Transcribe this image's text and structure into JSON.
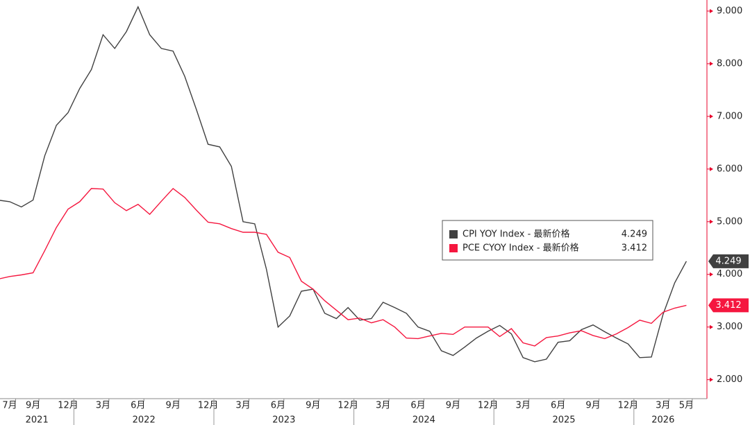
{
  "chart_data": {
    "type": "line",
    "x": [
      "2021-06",
      "2021-07",
      "2021-08",
      "2021-09",
      "2021-10",
      "2021-11",
      "2021-12",
      "2022-01",
      "2022-02",
      "2022-03",
      "2022-04",
      "2022-05",
      "2022-06",
      "2022-07",
      "2022-08",
      "2022-09",
      "2022-10",
      "2022-11",
      "2022-12",
      "2023-01",
      "2023-02",
      "2023-03",
      "2023-04",
      "2023-05",
      "2023-06",
      "2023-07",
      "2023-08",
      "2023-09",
      "2023-10",
      "2023-11",
      "2023-12",
      "2024-01",
      "2024-02",
      "2024-03",
      "2024-04",
      "2024-05",
      "2024-06",
      "2024-07",
      "2024-08",
      "2024-09",
      "2024-10",
      "2024-11",
      "2024-12",
      "2025-01",
      "2025-02",
      "2025-03",
      "2025-04",
      "2025-05",
      "2025-06",
      "2025-07",
      "2025-08",
      "2025-09",
      "2025-10",
      "2025-11",
      "2025-12",
      "2026-01",
      "2026-02",
      "2026-03",
      "2026-04",
      "2026-05"
    ],
    "series": [
      {
        "name": "CPI YOY Index - 最新价格",
        "color": "#404040",
        "values": [
          5.41,
          5.38,
          5.28,
          5.41,
          6.25,
          6.83,
          7.07,
          7.53,
          7.89,
          8.55,
          8.29,
          8.61,
          9.08,
          8.55,
          8.29,
          8.24,
          7.76,
          7.13,
          6.47,
          6.42,
          6.05,
          5.0,
          4.96,
          4.1,
          3.0,
          3.21,
          3.68,
          3.72,
          3.26,
          3.16,
          3.37,
          3.13,
          3.16,
          3.47,
          3.37,
          3.26,
          3.0,
          2.92,
          2.55,
          2.46,
          2.62,
          2.79,
          2.92,
          3.03,
          2.87,
          2.42,
          2.34,
          2.39,
          2.71,
          2.74,
          2.95,
          3.04,
          2.91,
          2.79,
          2.68,
          2.42,
          2.43,
          3.24,
          3.84,
          4.249
        ]
      },
      {
        "name": "PCE CYOY Index - 最新价格",
        "color": "#f5173f",
        "values": [
          3.91,
          3.96,
          3.99,
          4.03,
          4.45,
          4.89,
          5.24,
          5.38,
          5.63,
          5.62,
          5.36,
          5.21,
          5.33,
          5.14,
          5.39,
          5.63,
          5.46,
          5.22,
          4.99,
          4.96,
          4.87,
          4.8,
          4.8,
          4.76,
          4.42,
          4.32,
          3.87,
          3.72,
          3.5,
          3.32,
          3.14,
          3.17,
          3.08,
          3.14,
          3.0,
          2.79,
          2.78,
          2.83,
          2.88,
          2.86,
          3.0,
          3.0,
          3.0,
          2.82,
          2.97,
          2.7,
          2.64,
          2.8,
          2.83,
          2.89,
          2.93,
          2.84,
          2.78,
          2.87,
          2.99,
          3.13,
          3.07,
          3.28,
          3.36,
          3.412
        ]
      }
    ],
    "ylim": [
      1.64,
      9.21
    ],
    "yticks": [
      {
        "value": 2,
        "label": "2.000"
      },
      {
        "value": 3,
        "label": "3.000"
      },
      {
        "value": 4,
        "label": "4.000"
      },
      {
        "value": 5,
        "label": "5.000"
      },
      {
        "value": 6,
        "label": "6.000"
      },
      {
        "value": 7,
        "label": "7.000"
      },
      {
        "value": 8,
        "label": "8.000"
      },
      {
        "value": 9,
        "label": "9.000"
      }
    ],
    "xticks": [
      {
        "value": "2021-07",
        "label": "7月"
      },
      {
        "value": "2021-09",
        "label": "9月"
      },
      {
        "value": "2021-12",
        "label": "12月"
      },
      {
        "value": "2022-03",
        "label": "3月"
      },
      {
        "value": "2022-06",
        "label": "6月"
      },
      {
        "value": "2022-09",
        "label": "9月"
      },
      {
        "value": "2022-12",
        "label": "12月"
      },
      {
        "value": "2023-03",
        "label": "3月"
      },
      {
        "value": "2023-06",
        "label": "6月"
      },
      {
        "value": "2023-09",
        "label": "9月"
      },
      {
        "value": "2023-12",
        "label": "12月"
      },
      {
        "value": "2024-03",
        "label": "3月"
      },
      {
        "value": "2024-06",
        "label": "6月"
      },
      {
        "value": "2024-09",
        "label": "9月"
      },
      {
        "value": "2024-12",
        "label": "12月"
      },
      {
        "value": "2025-03",
        "label": "3月"
      },
      {
        "value": "2025-06",
        "label": "6月"
      },
      {
        "value": "2025-09",
        "label": "9月"
      },
      {
        "value": "2025-12",
        "label": "12月"
      },
      {
        "value": "2026-03",
        "label": "3月"
      },
      {
        "value": "2026-05",
        "label": "5月"
      }
    ],
    "years": [
      2021,
      2022,
      2023,
      2024,
      2025,
      2026
    ],
    "axis_color": "#e8002a",
    "grid": false
  }
}
